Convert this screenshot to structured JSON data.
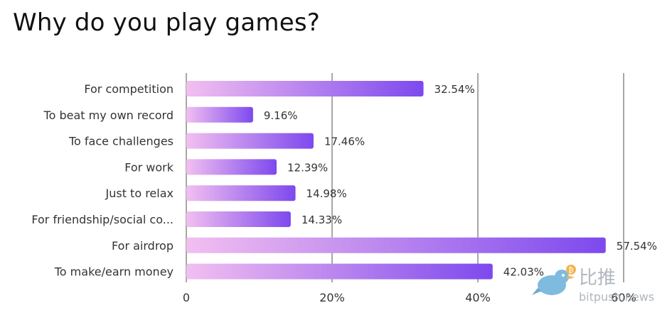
{
  "chart_data": {
    "type": "bar",
    "orientation": "horizontal",
    "title": "Why do you play games?",
    "xlabel": "",
    "ylabel": "",
    "categories": [
      "For competition",
      "To beat my own record",
      "To face challenges",
      "For work",
      "Just to relax",
      "For friendship/social co...",
      "For airdrop",
      "To make/earn money"
    ],
    "values": [
      32.54,
      9.16,
      17.46,
      12.39,
      14.98,
      14.33,
      57.54,
      42.03
    ],
    "value_labels": [
      "32.54%",
      "9.16%",
      "17.46%",
      "12.39%",
      "14.98%",
      "14.33%",
      "57.54%",
      "42.03%"
    ],
    "xlim": [
      0,
      60
    ],
    "ticks": [
      0,
      20,
      40,
      60
    ],
    "tick_labels": [
      "0",
      "20%",
      "40%",
      "60%"
    ],
    "grid": true,
    "legend": "none",
    "colors": {
      "bar_start": "#f2bff0",
      "bar_end": "#7d49ee",
      "grid": "#8a8a8a",
      "text": "#333333"
    }
  },
  "watermark": {
    "logo_text": "比推",
    "logo_subtext": "bitpush.news",
    "icon": "bird-icon"
  }
}
